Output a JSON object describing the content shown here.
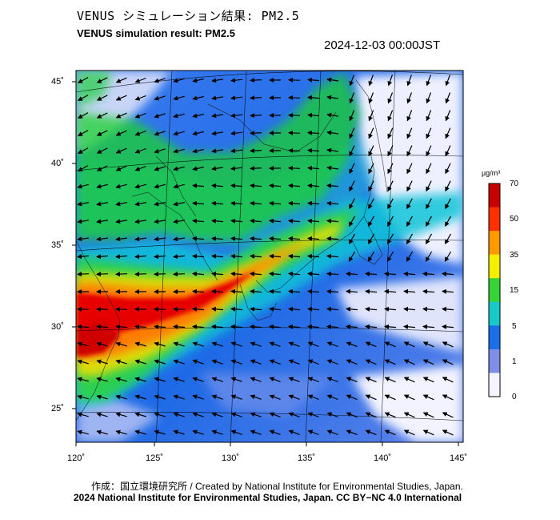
{
  "header": {
    "title_jp": "VENUS シミュレーション結果: PM2.5",
    "title_en": "VENUS simulation result: PM2.5",
    "timestamp": "2024-12-03 00:00JST"
  },
  "map": {
    "variable": "PM2.5",
    "lat_labels": [
      "45˚",
      "40˚",
      "35˚",
      "30˚",
      "25˚"
    ],
    "lon_labels": [
      "120˚",
      "125˚",
      "130˚",
      "135˚",
      "140˚",
      "145˚"
    ],
    "plume_colors": [
      "#f0f0ff",
      "#6a8ff0",
      "#1a64e6",
      "#10c4d8",
      "#19d12f",
      "#f0e000",
      "#ff7800",
      "#e60000"
    ]
  },
  "colorbar": {
    "unit": "µg/m³",
    "ticks": [
      "70",
      "50",
      "35",
      "15",
      "5",
      "1",
      "0"
    ],
    "colors": [
      "#c80000",
      "#ff3000",
      "#ff9a00",
      "#f5f000",
      "#36d436",
      "#17c9c9",
      "#1a6fe6",
      "#7f8fe8",
      "#f4f4ff"
    ]
  },
  "footer": {
    "credit": "作成：国立環境研究所 / Created by National Institute for Environmental Studies, Japan.",
    "license": "2024 National Institute for Environmental Studies, Japan. CC BY−NC 4.0 International"
  }
}
